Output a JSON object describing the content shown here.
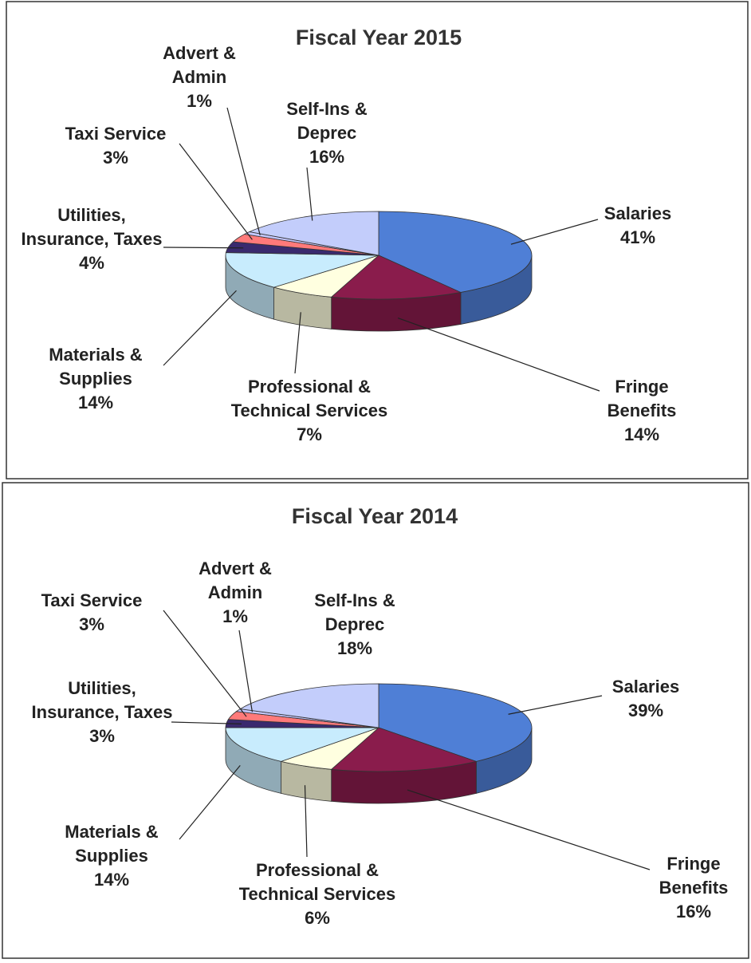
{
  "chart_data": [
    {
      "type": "pie",
      "title": "Fiscal Year 2015",
      "categories": [
        "Salaries",
        "Fringe Benefits",
        "Professional & Technical Services",
        "Materials & Supplies",
        "Utilities, Insurance, Taxes",
        "Taxi Service",
        "Advert & Admin",
        "Self-Ins & Deprec"
      ],
      "values": [
        41,
        14,
        7,
        14,
        4,
        3,
        1,
        16
      ],
      "value_labels": [
        "41%",
        "14%",
        "7%",
        "14%",
        "4%",
        "3%",
        "1%",
        "16%"
      ],
      "colors": [
        "#4f7fd6",
        "#8a1c4c",
        "#ffffe0",
        "#c8ecfd",
        "#3a2a6e",
        "#ff7a7a",
        "#c4c8ff",
        "#c3cdfb"
      ]
    },
    {
      "type": "pie",
      "title": "Fiscal Year 2014",
      "categories": [
        "Salaries",
        "Fringe Benefits",
        "Professional & Technical Services",
        "Materials & Supplies",
        "Utilities, Insurance, Taxes",
        "Taxi Service",
        "Advert & Admin",
        "Self-Ins & Deprec"
      ],
      "values": [
        39,
        16,
        6,
        14,
        3,
        3,
        1,
        18
      ],
      "value_labels": [
        "39%",
        "16%",
        "6%",
        "14%",
        "3%",
        "3%",
        "1%",
        "18%"
      ],
      "colors": [
        "#4f7fd6",
        "#8a1c4c",
        "#ffffe0",
        "#c8ecfd",
        "#3a2a6e",
        "#ff7a7a",
        "#c4c8ff",
        "#c3cdfb"
      ]
    }
  ]
}
